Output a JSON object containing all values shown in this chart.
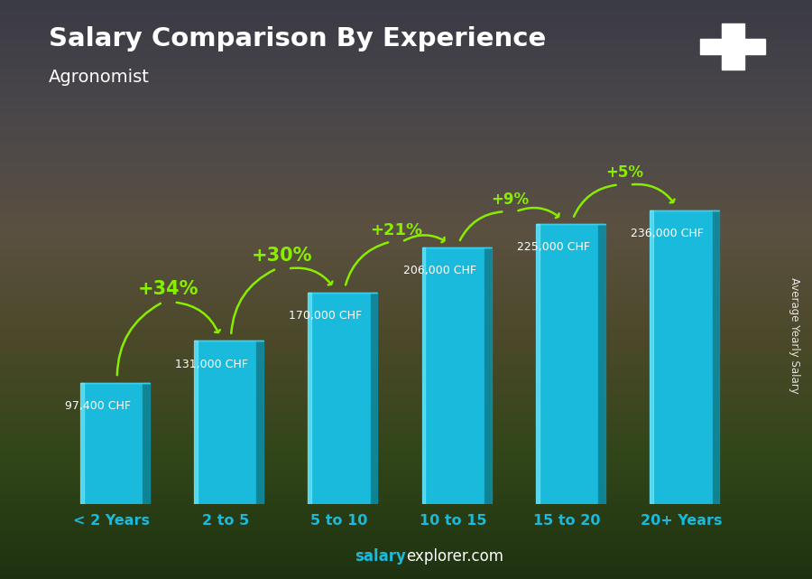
{
  "title": "Salary Comparison By Experience",
  "subtitle": "Agronomist",
  "categories": [
    "< 2 Years",
    "2 to 5",
    "5 to 10",
    "10 to 15",
    "15 to 20",
    "20+ Years"
  ],
  "values": [
    97400,
    131000,
    170000,
    206000,
    225000,
    236000
  ],
  "labels": [
    "97,400 CHF",
    "131,000 CHF",
    "170,000 CHF",
    "206,000 CHF",
    "225,000 CHF",
    "236,000 CHF"
  ],
  "pct_changes": [
    "+34%",
    "+30%",
    "+21%",
    "+9%",
    "+5%"
  ],
  "bar_color_main": "#1ABADC",
  "bar_color_light": "#3DD4F0",
  "bar_color_dark": "#0A90AA",
  "pct_color": "#88EE00",
  "label_color": "#FFFFFF",
  "title_color": "#FFFFFF",
  "subtitle_color": "#FFFFFF",
  "watermark_bold": "salary",
  "watermark_normal": "explorer.com",
  "ylabel": "Average Yearly Salary",
  "ylim_max": 270000,
  "flag_color": "#CC0000",
  "bg_colors": [
    "#4a4a55",
    "#5a5060",
    "#6a6050",
    "#5a5535",
    "#3a5020",
    "#2d4a18"
  ],
  "arrow_color": "#88EE00"
}
